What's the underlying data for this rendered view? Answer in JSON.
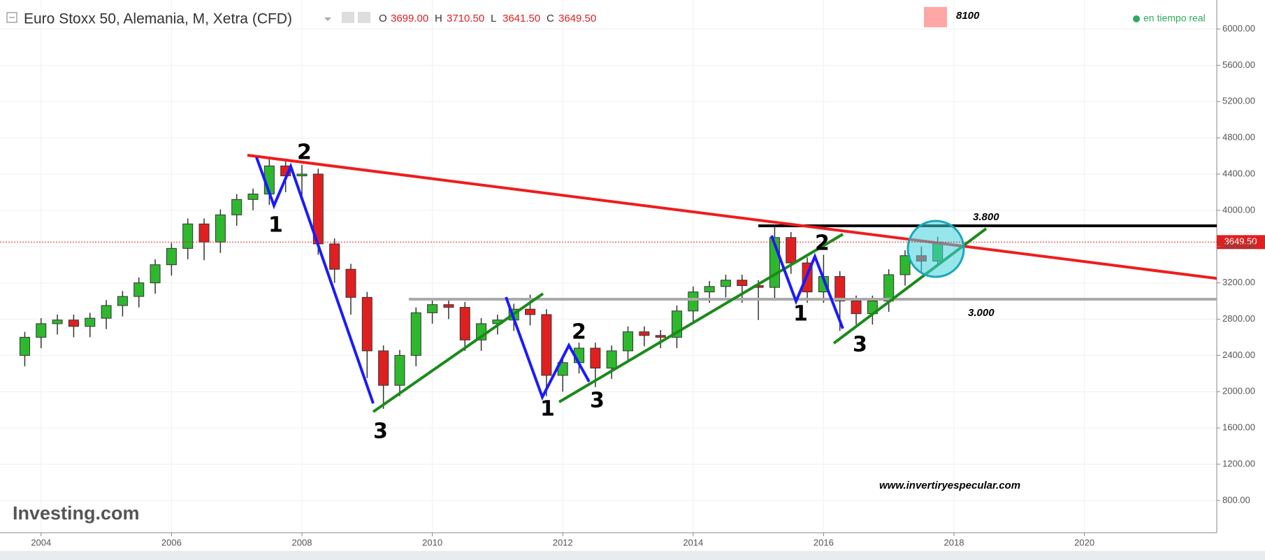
{
  "header": {
    "title": "Euro Stoxx 50, Alemania, M, Xetra (CFD)",
    "ohlc": [
      {
        "label": "O",
        "value": "3699.00"
      },
      {
        "label": "H",
        "value": "3710.50"
      },
      {
        "label": "L",
        "value": "3641.50"
      },
      {
        "label": "C",
        "value": "3649.50"
      }
    ],
    "status": "en tiempo real",
    "logo": "Investing.com"
  },
  "chart_data": {
    "type": "candlestick",
    "x": [
      2003.75,
      2004,
      2004.25,
      2004.5,
      2004.75,
      2005,
      2005.25,
      2005.5,
      2005.75,
      2006,
      2006.25,
      2006.5,
      2006.75,
      2007,
      2007.25,
      2007.5,
      2007.75,
      2008,
      2008.25,
      2008.5,
      2008.75,
      2009,
      2009.25,
      2009.5,
      2009.75,
      2010,
      2010.25,
      2010.5,
      2010.75,
      2011,
      2011.25,
      2011.5,
      2011.75,
      2012,
      2012.25,
      2012.5,
      2012.75,
      2013,
      2013.25,
      2013.5,
      2013.75,
      2014,
      2014.25,
      2014.5,
      2014.75,
      2015,
      2015.25,
      2015.5,
      2015.75,
      2016,
      2016.25,
      2016.5,
      2016.75,
      2017,
      2017.25,
      2017.5,
      2017.75
    ],
    "open": [
      2400,
      2600,
      2750,
      2790,
      2720,
      2810,
      2950,
      3050,
      3200,
      3400,
      3580,
      3850,
      3650,
      3950,
      4120,
      4180,
      4490,
      4380,
      4400,
      3630,
      3350,
      3040,
      2450,
      2070,
      2400,
      2870,
      2960,
      2930,
      2570,
      2750,
      2790,
      2910,
      2850,
      2180,
      2320,
      2480,
      2260,
      2450,
      2660,
      2620,
      2600,
      2890,
      3100,
      3160,
      3230,
      3170,
      3150,
      3700,
      3420,
      3100,
      3270,
      3000,
      2860,
      3000,
      3290,
      3500,
      3440
    ],
    "high": [
      2660,
      2810,
      2850,
      2850,
      2870,
      3010,
      3110,
      3260,
      3460,
      3640,
      3910,
      3910,
      4010,
      4180,
      4240,
      4570,
      4560,
      4500,
      4460,
      3690,
      3410,
      3100,
      2510,
      2460,
      2930,
      3020,
      3020,
      2990,
      2810,
      2850,
      2970,
      3070,
      2910,
      2380,
      2540,
      2540,
      2510,
      2720,
      2720,
      2680,
      2950,
      3160,
      3220,
      3290,
      3290,
      3230,
      3830,
      3760,
      3480,
      3510,
      3330,
      3060,
      3060,
      3350,
      3560,
      3600,
      3710.5
    ],
    "low": [
      2280,
      2480,
      2630,
      2600,
      2600,
      2690,
      2830,
      2930,
      3080,
      3280,
      3460,
      3450,
      3530,
      3830,
      4000,
      4060,
      4200,
      4150,
      3510,
      3200,
      2850,
      2150,
      1810,
      1950,
      2280,
      2750,
      2800,
      2450,
      2450,
      2630,
      2670,
      2730,
      1950,
      2000,
      2200,
      2050,
      2140,
      2330,
      2500,
      2480,
      2480,
      2770,
      2980,
      3040,
      2980,
      2790,
      3030,
      3300,
      2980,
      2980,
      2670,
      2740,
      2740,
      2880,
      3170,
      3320,
      3380
    ],
    "close": [
      2600,
      2750,
      2790,
      2720,
      2810,
      2950,
      3050,
      3200,
      3400,
      3580,
      3850,
      3650,
      3950,
      4120,
      4180,
      4490,
      4380,
      4400,
      3630,
      3350,
      3040,
      2450,
      2070,
      2400,
      2870,
      2960,
      2930,
      2570,
      2750,
      2790,
      2910,
      2850,
      2180,
      2320,
      2480,
      2260,
      2450,
      2660,
      2620,
      2600,
      2890,
      3100,
      3160,
      3230,
      3170,
      3150,
      3700,
      3420,
      3100,
      3270,
      3000,
      2860,
      3000,
      3290,
      3500,
      3440,
      3649.5
    ],
    "up_color": "#2eb82e",
    "down_color": "#e02020",
    "xlim": [
      2003.37,
      2022.03
    ],
    "xticks": [
      2004,
      2006,
      2008,
      2010,
      2012,
      2014,
      2016,
      2018,
      2020
    ],
    "ylim": [
      444,
      6320
    ],
    "yticks": [
      {
        "value": 800,
        "label": "800.00"
      },
      {
        "value": 1200,
        "label": "1200.00"
      },
      {
        "value": 1600,
        "label": "1600.00"
      },
      {
        "value": 2000,
        "label": "2000.00"
      },
      {
        "value": 2400,
        "label": "2400.00"
      },
      {
        "value": 2800,
        "label": "2800.00"
      },
      {
        "value": 3200,
        "label": "3200.00"
      },
      {
        "value": 3600,
        "label": "3600.00"
      },
      {
        "value": 4000,
        "label": "4000.00"
      },
      {
        "value": 4400,
        "label": "4400.00"
      },
      {
        "value": 4800,
        "label": "4800.00"
      },
      {
        "value": 5200,
        "label": "5200.00"
      },
      {
        "value": 5600,
        "label": "5600.00"
      },
      {
        "value": 6000,
        "label": "6000.00"
      }
    ],
    "last_price": 3649.5,
    "last_price_label": "3649.50",
    "annotations": [
      "8100",
      "3.800",
      "3.000",
      "www.invertiryespecular.com"
    ],
    "wave_labels": [
      "2",
      "1",
      "3",
      "1",
      "2",
      "3",
      "1",
      "2",
      "3"
    ]
  }
}
